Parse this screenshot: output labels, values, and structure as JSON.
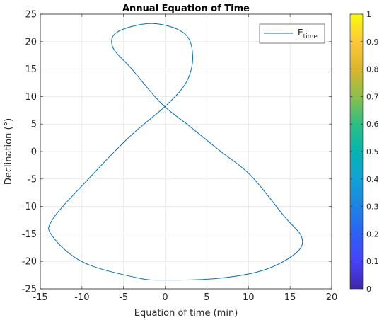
{
  "chart_data": {
    "type": "line",
    "title": "Annual Equation of Time",
    "xlabel": "Equation of time (min)",
    "ylabel": "Declination (°)",
    "xlim": [
      -15,
      20
    ],
    "ylim": [
      -25,
      25
    ],
    "xticks": [
      "-15",
      "-10",
      "-5",
      "0",
      "5",
      "10",
      "15",
      "20"
    ],
    "yticks": [
      "-25",
      "-20",
      "-15",
      "-10",
      "-5",
      "0",
      "5",
      "10",
      "15",
      "20",
      "25"
    ],
    "grid": true,
    "legend": {
      "position": "top-right",
      "label_main": "E",
      "label_sub": "time"
    },
    "series": [
      {
        "name": "E_time",
        "color": "#0072BD",
        "x": [
          -3.3,
          -9.8,
          -13.5,
          -13.5,
          -9.1,
          -4.2,
          0.2,
          2.6,
          3.3,
          2.3,
          -1.5,
          -5.7,
          -6.3,
          -4.0,
          -0.5,
          3.1,
          6.6,
          10.3,
          14.3,
          16.4,
          15.7,
          11.8,
          6.3,
          0.0,
          -3.3
        ],
        "y": [
          -23.0,
          -20.2,
          -15.5,
          -12.3,
          -4.8,
          2.8,
          8.5,
          12.8,
          17.5,
          21.5,
          23.3,
          21.8,
          19.0,
          15.0,
          8.8,
          4.4,
          0.1,
          -4.4,
          -11.8,
          -15.6,
          -18.5,
          -21.6,
          -23.1,
          -23.4,
          -23.0
        ]
      }
    ],
    "colorbar": {
      "ticks": [
        "0",
        "0.1",
        "0.2",
        "0.3",
        "0.4",
        "0.5",
        "0.6",
        "0.7",
        "0.8",
        "0.9",
        "1"
      ],
      "colormap": "parula"
    }
  }
}
